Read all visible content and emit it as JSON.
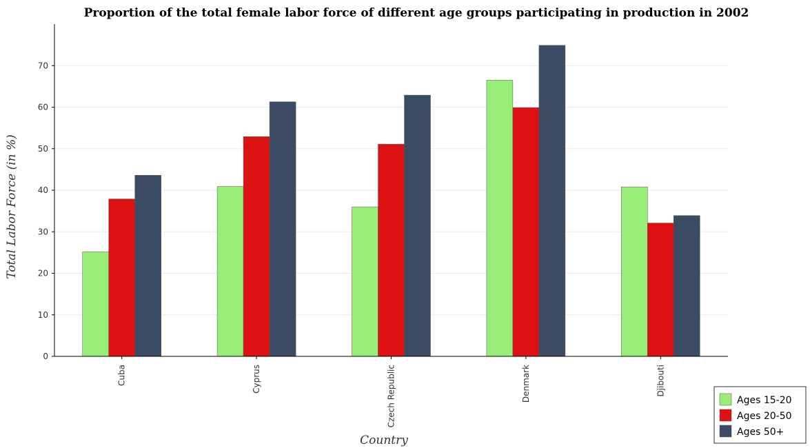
{
  "chart_data": {
    "type": "bar",
    "title": "Proportion of the total female labor force of different age groups participating in production in 2002",
    "xlabel": "Country",
    "ylabel": "Total Labor Force (in %)",
    "categories": [
      "Cuba",
      "Cyprus",
      "Czech Republic",
      "Denmark",
      "Djibouti"
    ],
    "series": [
      {
        "name": "Ages 15-20",
        "color": "#99ee77",
        "values": [
          25.2,
          40.9,
          36.0,
          66.5,
          40.8
        ]
      },
      {
        "name": "Ages 20-50",
        "color": "#dd1111",
        "values": [
          37.9,
          52.9,
          51.1,
          59.9,
          32.1
        ]
      },
      {
        "name": "Ages 50+",
        "color": "#3a4b63",
        "values": [
          43.6,
          61.3,
          62.9,
          74.9,
          33.9
        ]
      }
    ],
    "ylim": [
      0,
      80
    ],
    "yticks": [
      0,
      10,
      20,
      30,
      40,
      50,
      60,
      70
    ],
    "grid": true,
    "legend_position": "bottom-right"
  }
}
